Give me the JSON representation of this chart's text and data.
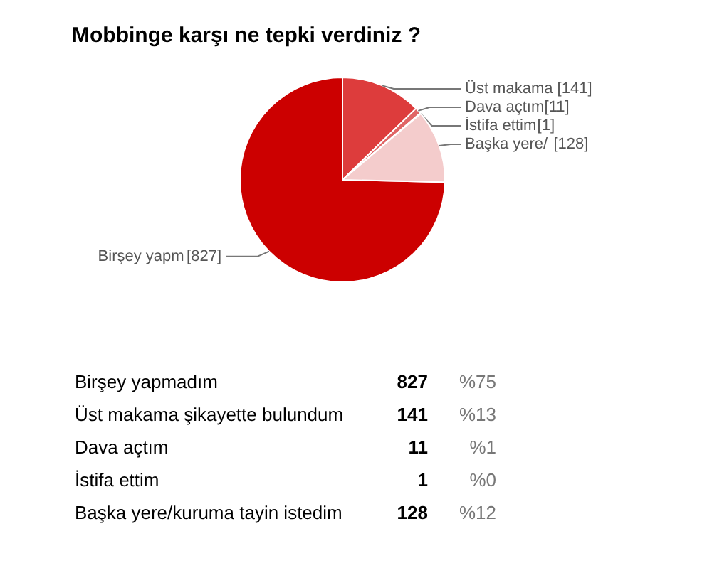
{
  "chart_data": {
    "type": "pie",
    "title": "Mobbinge karşı ne tepki verdiniz ?",
    "categories": [
      "Birşey yapm",
      "Üst makama ",
      "Dava açtım",
      "İstifa ettim",
      "Başka yere/"
    ],
    "values": [
      827,
      141,
      11,
      1,
      128
    ],
    "colors": [
      "#cc0000",
      "#dd3c3c",
      "#e06666",
      "#ea9999",
      "#f4cccc"
    ],
    "value_labels": [
      "[827]",
      "[141]",
      "[11]",
      "[1]",
      "[128]"
    ],
    "annotations": [
      "Birşey yapmadım",
      "827",
      "%75",
      "Üst makama şikayette bulundum",
      "141",
      "%13",
      "Dava açtım",
      "11",
      "%1",
      "İstifa ettim",
      "1",
      "%0",
      "Başka yere/kuruma tayin istedim",
      "128",
      "%12"
    ]
  }
}
